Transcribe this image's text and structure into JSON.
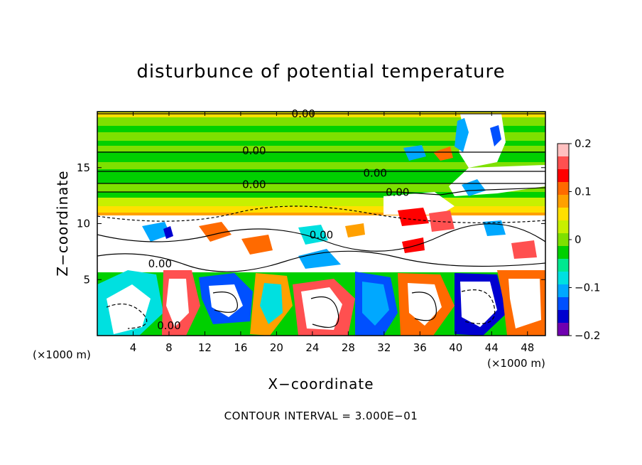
{
  "chart_data": {
    "type": "heatmap",
    "title": "disturbunce of potential temperature",
    "xlabel": "X−coordinate",
    "ylabel": "Z−coordinate",
    "x_unit_label": "(×1000 m)",
    "y_unit_label": "(×1000 m)",
    "xlim": [
      0,
      50
    ],
    "ylim": [
      0,
      20
    ],
    "x_ticks": [
      4,
      8,
      12,
      16,
      20,
      24,
      28,
      32,
      36,
      40,
      44,
      48
    ],
    "y_ticks": [
      5,
      10,
      15
    ],
    "colorbar": {
      "min": -0.2,
      "max": 0.2,
      "tick_values": [
        0.2,
        0.1,
        0,
        -0.1,
        -0.2
      ],
      "tick_labels": [
        "0.2",
        "0.1",
        "0",
        "−0.1",
        "−0.2"
      ],
      "colors": [
        "#ffc0c0",
        "#ff5050",
        "#ff0000",
        "#ff6a00",
        "#ffa000",
        "#ffe000",
        "#c8f000",
        "#7ee000",
        "#00d000",
        "#00e890",
        "#00e0e0",
        "#00a8ff",
        "#0050ff",
        "#0000d0",
        "#7000b0"
      ]
    },
    "contour_labels": [
      {
        "x": 23,
        "z": 19.8,
        "text": "0.00"
      },
      {
        "x": 17.5,
        "z": 16.5,
        "text": "0.00"
      },
      {
        "x": 17.5,
        "z": 13.5,
        "text": "0.00"
      },
      {
        "x": 31,
        "z": 14.5,
        "text": "0.00"
      },
      {
        "x": 33.5,
        "z": 12.8,
        "text": "0.00"
      },
      {
        "x": 25,
        "z": 9.0,
        "text": "0.00"
      },
      {
        "x": 7,
        "z": 6.4,
        "text": "0.00"
      },
      {
        "x": 8,
        "z": 0.9,
        "text": "0.00"
      }
    ],
    "contour_interval_text": "CONTOUR INTERVAL = 3.000E−01"
  }
}
